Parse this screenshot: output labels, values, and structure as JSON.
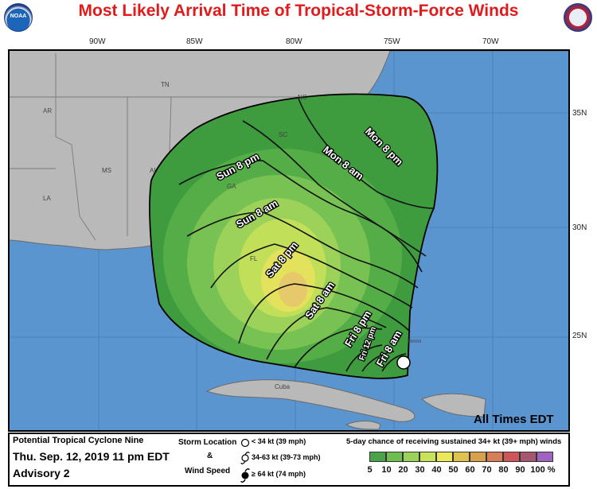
{
  "header": {
    "title": "Most Likely Arrival Time of Tropical-Storm-Force Winds",
    "left_logo_text": "NOAA"
  },
  "map": {
    "longitude_labels": [
      "90W",
      "85W",
      "80W",
      "75W",
      "70W"
    ],
    "latitude_labels": [
      "35N",
      "30N",
      "25N"
    ],
    "state_labels": [
      "TN",
      "NC",
      "AR",
      "SC",
      "MS",
      "AL",
      "LA",
      "GA",
      "FL"
    ],
    "place_labels": [
      "Cuba",
      "Bimini"
    ],
    "time_contours": [
      "Mon 8 pm",
      "Mon 8 am",
      "Sun 8 pm",
      "Sun 8 am",
      "Sat 8 pm",
      "Sat 8 am",
      "Fri 8 pm",
      "Fri 12 pm",
      "Fri 8 am"
    ],
    "times_note": "All Times EDT"
  },
  "legend": {
    "storm_name": "Potential Tropical Cyclone Nine",
    "datetime": "Thu. Sep. 12, 2019  11 pm EDT",
    "advisory": "Advisory 2",
    "storm_location_label": "Storm Location",
    "amp": "&",
    "wind_speed_label": "Wind Speed",
    "wind_categories": [
      "< 34 kt (39 mph)",
      "34-63 kt (39-73 mph)",
      "≥ 64 kt (74 mph)"
    ],
    "chance_title": "5-day chance of receiving sustained 34+ kt (39+ mph) winds",
    "chance_values": [
      "5",
      "10",
      "20",
      "30",
      "40",
      "50",
      "60",
      "70",
      "80",
      "90",
      "100 %"
    ],
    "chance_colors": [
      "#4aa34a",
      "#6fbf50",
      "#9bd35a",
      "#c8e25a",
      "#ece85a",
      "#e0c34e",
      "#d9a04a",
      "#d97c58",
      "#d0555a",
      "#a85570",
      "#a064c0"
    ]
  }
}
